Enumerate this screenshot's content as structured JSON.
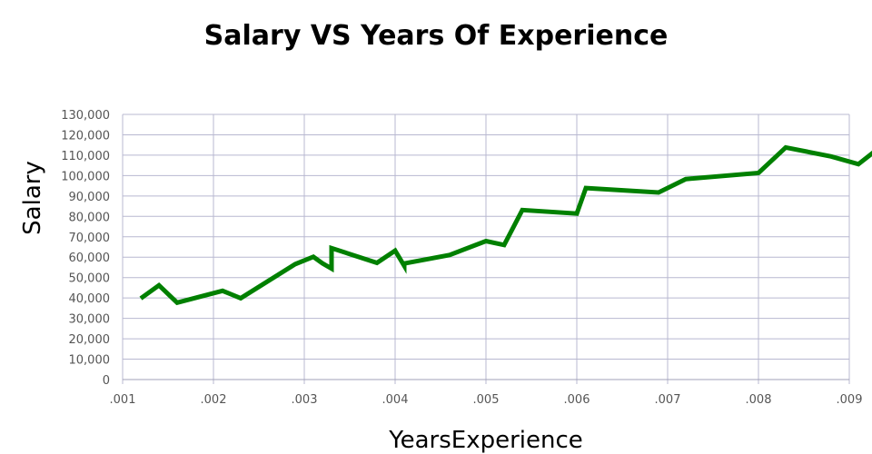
{
  "chart_data": {
    "type": "line",
    "title": "Salary VS Years Of Experience",
    "xlabel": "YearsExperience",
    "ylabel": "Salary",
    "xlim": [
      0.001,
      0.009
    ],
    "ylim": [
      0,
      130000
    ],
    "x_ticks": [
      ".001",
      ".002",
      ".003",
      ".004",
      ".005",
      ".006",
      ".007",
      ".008",
      ".009"
    ],
    "y_ticks": [
      "0",
      "10,000",
      "20,000",
      "30,000",
      "40,000",
      "50,000",
      "60,000",
      "70,000",
      "80,000",
      "90,000",
      "100,000",
      "110,000",
      "120,000",
      "130,000"
    ],
    "grid": true,
    "line_color": "#008000",
    "series": [
      {
        "x": [
          0.0012,
          0.0014,
          0.0016,
          0.0021,
          0.0023,
          0.0029,
          0.0031,
          0.0032,
          0.0033,
          0.0033,
          0.0038,
          0.004,
          0.0041,
          0.0041,
          0.0046,
          0.005,
          0.0052,
          0.0054,
          0.006,
          0.0061,
          0.0069,
          0.0072,
          0.008,
          0.0083,
          0.0088,
          0.0091,
          0.0093
        ],
        "y": [
          39800,
          46200,
          37700,
          43500,
          39900,
          56600,
          60200,
          57000,
          54400,
          64400,
          57200,
          63200,
          55800,
          56900,
          61100,
          67900,
          66000,
          83100,
          81400,
          93900,
          91700,
          98300,
          101300,
          113800,
          109400,
          105600,
          112600
        ]
      }
    ]
  }
}
